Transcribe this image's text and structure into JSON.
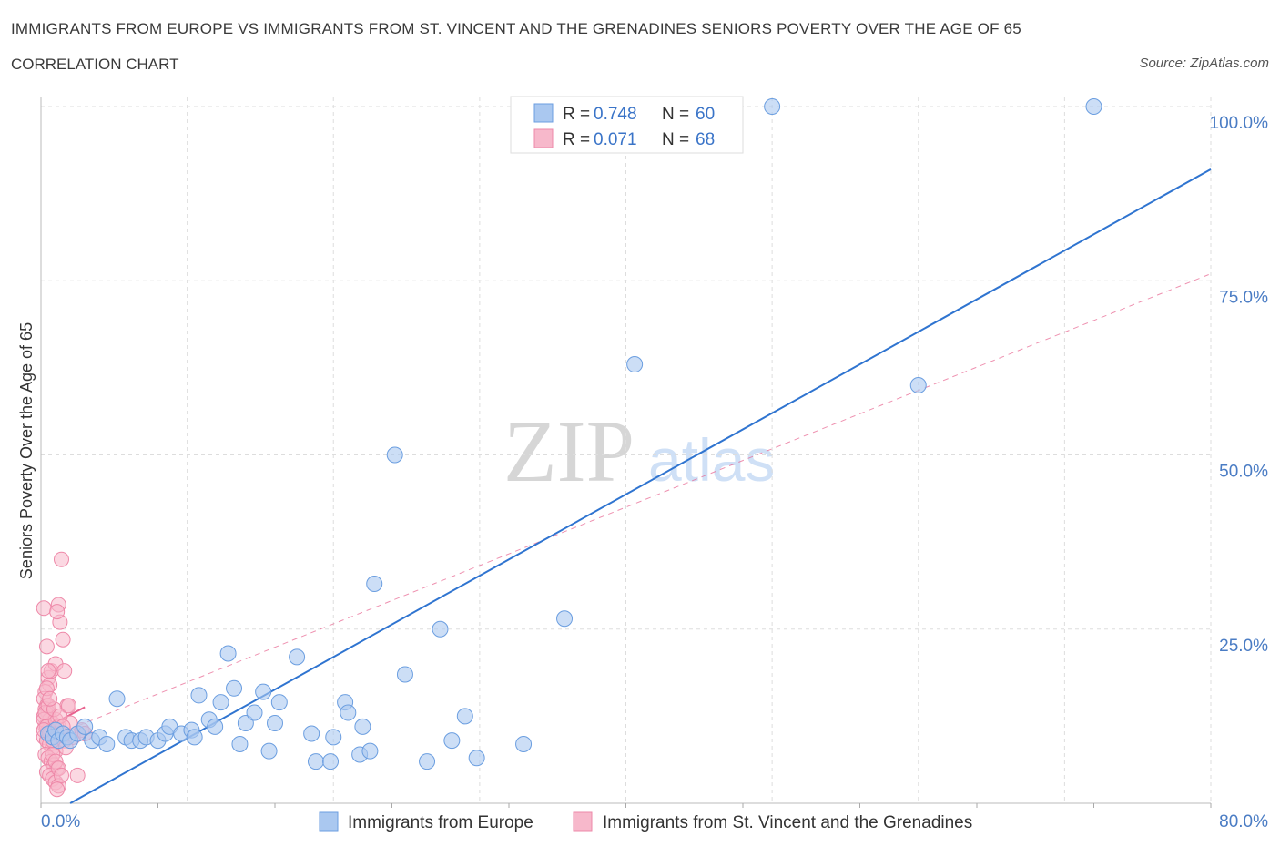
{
  "title": "IMMIGRANTS FROM EUROPE VS IMMIGRANTS FROM ST. VINCENT AND THE GRENADINES SENIORS POVERTY OVER THE AGE OF 65",
  "subtitle": "CORRELATION CHART",
  "source": "Source: ZipAtlas.com",
  "watermark": {
    "zip": "ZIP",
    "atlas": "atlas"
  },
  "colors": {
    "europe_fill": "#aac8f0",
    "europe_stroke": "#6b9ee0",
    "europe_line": "#2f74d0",
    "svg_fill": "#f7b8cb",
    "svg_stroke": "#ee88a8",
    "svg_line": "#e8638f",
    "axis_label": "#4a7cc4",
    "grid": "#dddddd"
  },
  "legend": {
    "rows": [
      {
        "r_label": "R = ",
        "r_value": "0.748",
        "n_label": "N = ",
        "n_value": "60"
      },
      {
        "r_label": "R = ",
        "r_value": "0.071",
        "n_label": "N = ",
        "n_value": "68"
      }
    ]
  },
  "chart_data": {
    "type": "scatter",
    "title": "IMMIGRANTS FROM EUROPE VS IMMIGRANTS FROM ST. VINCENT AND THE GRENADINES SENIORS POVERTY OVER THE AGE OF 65",
    "xlabel": "",
    "ylabel": "Seniors Poverty Over the Age of 65",
    "xlim": [
      0,
      80
    ],
    "ylim": [
      0,
      100
    ],
    "x_tick_labels": [
      "0.0%",
      "80.0%"
    ],
    "y_ticks": [
      25,
      50,
      75,
      100
    ],
    "y_tick_labels": [
      "25.0%",
      "50.0%",
      "75.0%",
      "100.0%"
    ],
    "grid": true,
    "legend_position": "bottom",
    "series": [
      {
        "name": "Immigrants from Europe",
        "r": 0.748,
        "n": 60,
        "trend": {
          "x": [
            2,
            80
          ],
          "y": [
            0,
            91
          ]
        },
        "points": [
          [
            0.5,
            10
          ],
          [
            0.8,
            9.5
          ],
          [
            1,
            10.5
          ],
          [
            1.2,
            9
          ],
          [
            1.5,
            10
          ],
          [
            1.8,
            9.5
          ],
          [
            2,
            9
          ],
          [
            2.5,
            10
          ],
          [
            3,
            11
          ],
          [
            3.5,
            9
          ],
          [
            4,
            9.5
          ],
          [
            4.5,
            8.5
          ],
          [
            5.2,
            15
          ],
          [
            5.8,
            9.5
          ],
          [
            6.2,
            9
          ],
          [
            6.8,
            9
          ],
          [
            7.2,
            9.5
          ],
          [
            8,
            9
          ],
          [
            8.5,
            10
          ],
          [
            8.8,
            11
          ],
          [
            9.6,
            10
          ],
          [
            10.3,
            10.5
          ],
          [
            10.5,
            9.5
          ],
          [
            10.8,
            15.5
          ],
          [
            11.5,
            12
          ],
          [
            11.9,
            11
          ],
          [
            12.3,
            14.5
          ],
          [
            12.8,
            21.5
          ],
          [
            13.2,
            16.5
          ],
          [
            13.6,
            8.5
          ],
          [
            14,
            11.5
          ],
          [
            14.6,
            13
          ],
          [
            15.2,
            16
          ],
          [
            15.6,
            7.5
          ],
          [
            16,
            11.5
          ],
          [
            16.3,
            14.5
          ],
          [
            17.5,
            21
          ],
          [
            18.5,
            10
          ],
          [
            18.8,
            6
          ],
          [
            19.8,
            6
          ],
          [
            20,
            9.5
          ],
          [
            20.8,
            14.5
          ],
          [
            21,
            13
          ],
          [
            21.8,
            7
          ],
          [
            22,
            11
          ],
          [
            22.5,
            7.5
          ],
          [
            22.8,
            31.5
          ],
          [
            24.2,
            50
          ],
          [
            24.9,
            18.5
          ],
          [
            26.4,
            6
          ],
          [
            27.3,
            25
          ],
          [
            28.1,
            9
          ],
          [
            29,
            12.5
          ],
          [
            29.8,
            6.5
          ],
          [
            33,
            8.5
          ],
          [
            35.8,
            26.5
          ],
          [
            40.6,
            63
          ],
          [
            50,
            100
          ],
          [
            60,
            60
          ],
          [
            72,
            100
          ]
        ]
      },
      {
        "name": "Immigrants from St. Vincent and the Grenadines",
        "r": 0.071,
        "n": 68,
        "trend": {
          "x": [
            0,
            3
          ],
          "y": [
            10.5,
            13.8
          ]
        },
        "trend_extended": {
          "x": [
            0,
            80
          ],
          "y": [
            9,
            76
          ]
        },
        "points": [
          [
            0.2,
            28
          ],
          [
            0.4,
            22.5
          ],
          [
            0.5,
            18
          ],
          [
            0.6,
            17
          ],
          [
            0.3,
            16
          ],
          [
            0.2,
            15
          ],
          [
            0.4,
            14
          ],
          [
            0.3,
            13.5
          ],
          [
            0.5,
            13
          ],
          [
            0.2,
            12.5
          ],
          [
            0.6,
            12
          ],
          [
            0.8,
            11.5
          ],
          [
            0.3,
            11
          ],
          [
            0.5,
            10.5
          ],
          [
            0.7,
            10
          ],
          [
            0.2,
            9.5
          ],
          [
            0.4,
            9
          ],
          [
            0.6,
            8.5
          ],
          [
            0.8,
            8
          ],
          [
            1,
            7.5
          ],
          [
            0.3,
            7
          ],
          [
            0.5,
            6.5
          ],
          [
            0.7,
            6
          ],
          [
            0.9,
            5.5
          ],
          [
            1.1,
            5
          ],
          [
            0.4,
            4.5
          ],
          [
            0.6,
            4
          ],
          [
            0.8,
            3.5
          ],
          [
            1,
            3
          ],
          [
            1.2,
            2.5
          ],
          [
            0.2,
            12
          ],
          [
            0.4,
            11
          ],
          [
            0.6,
            10
          ],
          [
            0.8,
            9
          ],
          [
            1,
            12
          ],
          [
            1.2,
            11
          ],
          [
            1.4,
            10
          ],
          [
            1.6,
            9
          ],
          [
            0.3,
            13
          ],
          [
            0.5,
            14
          ],
          [
            0.7,
            19
          ],
          [
            1,
            20
          ],
          [
            1.2,
            28.5
          ],
          [
            1.3,
            26
          ],
          [
            1.5,
            23.5
          ],
          [
            1.6,
            19
          ],
          [
            1.4,
            35
          ],
          [
            1.8,
            14
          ],
          [
            2,
            11.5
          ],
          [
            2.2,
            9.5
          ],
          [
            1.1,
            27.5
          ],
          [
            0.9,
            13.5
          ],
          [
            1.3,
            12.5
          ],
          [
            1.5,
            11
          ],
          [
            1.7,
            8
          ],
          [
            0.4,
            16.5
          ],
          [
            0.6,
            15
          ],
          [
            0.8,
            7
          ],
          [
            1,
            6
          ],
          [
            1.2,
            5
          ],
          [
            1.4,
            4
          ],
          [
            2.5,
            4
          ],
          [
            2.8,
            10.5
          ],
          [
            3,
            10
          ],
          [
            1.9,
            14
          ],
          [
            0.2,
            10.5
          ],
          [
            0.5,
            19
          ],
          [
            1.1,
            2
          ]
        ]
      }
    ]
  }
}
